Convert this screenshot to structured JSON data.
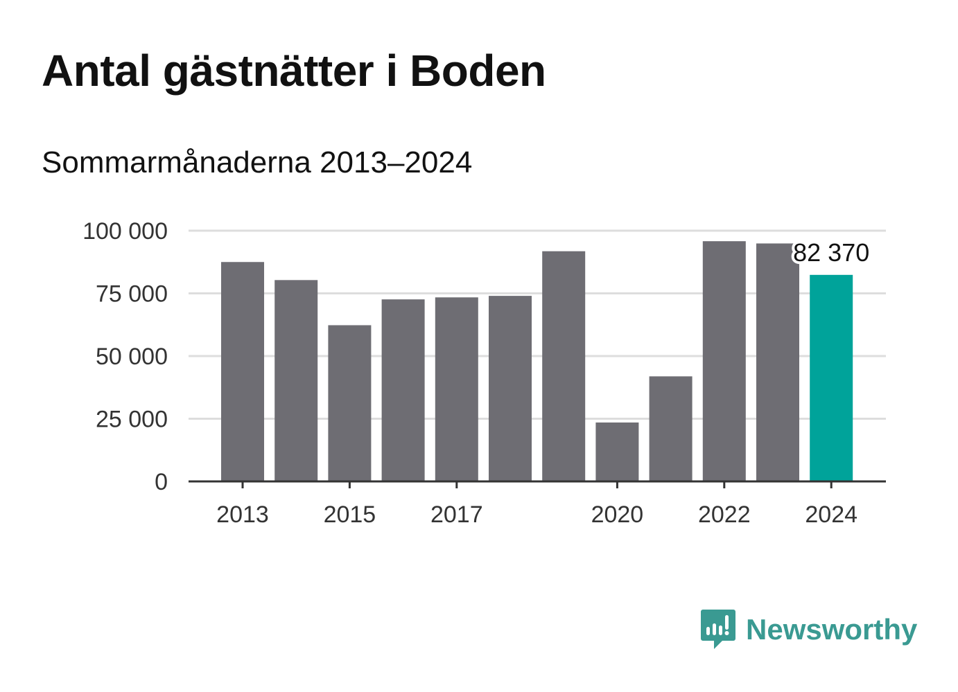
{
  "header": {
    "title": "Antal gästnätter i Boden",
    "subtitle": "Sommarmånaderna 2013–2024"
  },
  "colors": {
    "bar": "#6e6d73",
    "highlight": "#00a39a",
    "grid": "#dddddd",
    "axis": "#333333",
    "brand": "#3a9a92"
  },
  "logo": {
    "text": "Newsworthy",
    "icon": "bar-chart-speech-bubble-icon"
  },
  "chart_data": {
    "type": "bar",
    "title": "Antal gästnätter i Boden",
    "subtitle": "Sommarmånaderna 2013–2024",
    "categories": [
      "2013",
      "2014",
      "2015",
      "2016",
      "2017",
      "2018",
      "2019",
      "2020",
      "2021",
      "2022",
      "2023",
      "2024"
    ],
    "values": [
      87500,
      80300,
      62300,
      72600,
      73400,
      74000,
      91800,
      23500,
      41900,
      95800,
      94900,
      82370
    ],
    "highlight_index": 11,
    "annotation": {
      "index": 11,
      "text": "82 370"
    },
    "xticks": [
      "2013",
      "2015",
      "2017",
      "2020",
      "2022",
      "2024"
    ],
    "yticks": [
      {
        "value": 0,
        "label": "0"
      },
      {
        "value": 25000,
        "label": "25 000"
      },
      {
        "value": 50000,
        "label": "50 000"
      },
      {
        "value": 75000,
        "label": "75 000"
      },
      {
        "value": 100000,
        "label": "100 000"
      }
    ],
    "ylim": [
      0,
      100000
    ],
    "grid": true,
    "xlabel": "",
    "ylabel": ""
  }
}
